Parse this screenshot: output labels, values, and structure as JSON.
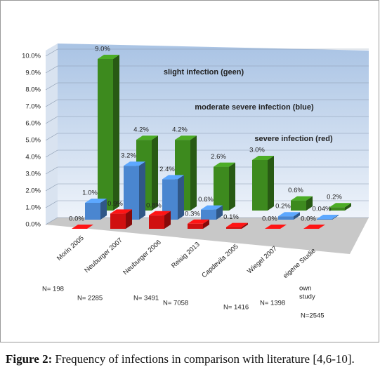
{
  "chart_data": {
    "type": "bar3d",
    "categories": [
      "Morin 2005",
      "Neuburger 2007",
      "Neuburger 2006",
      "Reisig 2013",
      "Capdevila 2005",
      "Wiegel 2007",
      "eigene Studie"
    ],
    "n_labels": [
      "N= 198",
      "N= 2285",
      "N= 3491",
      "N= 7058",
      "N= 1416",
      "N= 1398",
      "N=2545"
    ],
    "category_notes": [
      "own",
      "study"
    ],
    "series": [
      {
        "name": "severe infection (red)",
        "color": "#d01010",
        "values": [
          0.0,
          0.9,
          0.8,
          0.3,
          0.1,
          0.0,
          0.0
        ],
        "value_labels": [
          "0.0%",
          "0.9%",
          "0.8%",
          "0.3%",
          "0.1%",
          "0.0%",
          "0.0%"
        ]
      },
      {
        "name": "moderate severe infection (blue)",
        "color": "#4a86d0",
        "values": [
          1.0,
          3.2,
          2.4,
          0.6,
          null,
          0.2,
          0.04
        ],
        "value_labels": [
          "1.0%",
          "3.2%",
          "2.4%",
          "0.6%",
          null,
          "0.2%",
          "0.04%"
        ]
      },
      {
        "name": "slight infection (geen)",
        "color": "#3d8a1e",
        "values": [
          9.0,
          4.2,
          4.2,
          2.6,
          3.0,
          0.6,
          0.2
        ],
        "value_labels": [
          "9.0%",
          "4.2%",
          "4.2%",
          "2.6%",
          "3.0%",
          "0.6%",
          "0.2%"
        ]
      }
    ],
    "ylim": [
      0,
      10
    ],
    "yticks": [
      {
        "value": 0,
        "label": "0.0%"
      },
      {
        "value": 1,
        "label": "1.0%"
      },
      {
        "value": 2,
        "label": "2.0%"
      },
      {
        "value": 3,
        "label": "3.0%"
      },
      {
        "value": 4,
        "label": "4.0%"
      },
      {
        "value": 5,
        "label": "5.0%"
      },
      {
        "value": 6,
        "label": "6.0%"
      },
      {
        "value": 7,
        "label": "7.0%"
      },
      {
        "value": 8,
        "label": "8.0%"
      },
      {
        "value": 9,
        "label": "9.0%"
      },
      {
        "value": 10,
        "label": "10.0%"
      }
    ],
    "grid": true
  },
  "caption": {
    "label": "Figure 2:",
    "text": "Frequency of infections in comparison with literature [4,6-10]."
  }
}
